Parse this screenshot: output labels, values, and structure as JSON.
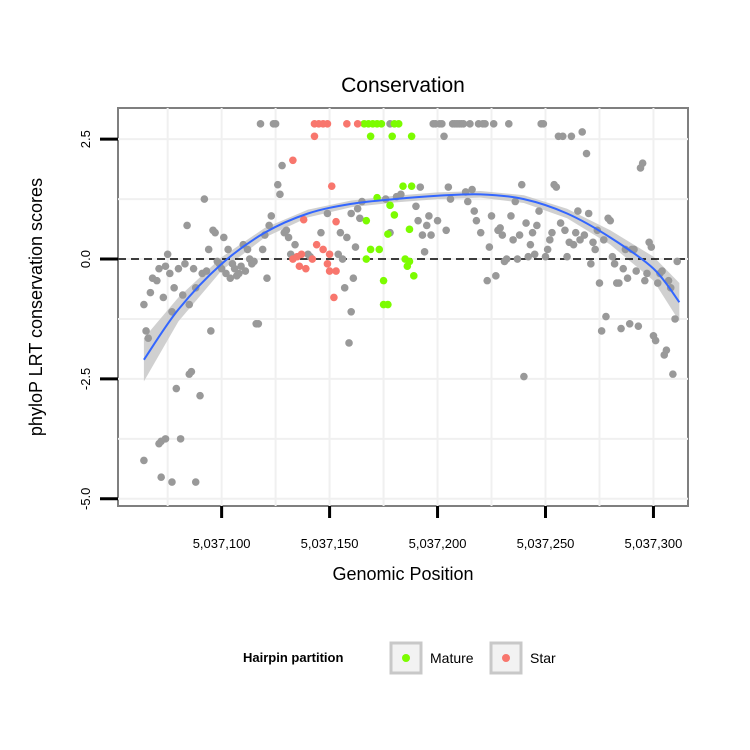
{
  "chart_data": {
    "type": "scatter",
    "title": "Conservation",
    "xlabel": "Genomic Position",
    "ylabel": "phyloP LRT conservation scores",
    "xlim": [
      5037052,
      5037316
    ],
    "ylim": [
      -5.15,
      3.15
    ],
    "x_ticks": [
      5037100,
      5037150,
      5037200,
      5037250,
      5037300
    ],
    "x_tick_labels": [
      "5,037,100",
      "5,037,150",
      "5,037,200",
      "5,037,250",
      "5,037,300"
    ],
    "y_ticks": [
      -5.0,
      -2.5,
      0.0,
      2.5
    ],
    "y_tick_labels": [
      "-5.0",
      "-2.5",
      "0.0",
      "2.5"
    ],
    "hline": 0,
    "grid": true,
    "legend_title": "Hairpin partition",
    "legend_position": "bottom",
    "colors": {
      "other": "#999999",
      "mature": "#7CFC00",
      "star": "#F8766D",
      "smooth_line": "#3366FF",
      "ribbon": "#c8c8c8",
      "panel_border": "#7f7f7f",
      "grid": "#f0f0f0"
    },
    "series": [
      {
        "name": "Mature",
        "points": [
          [
            5037166,
            2.82
          ],
          [
            5037168,
            2.82
          ],
          [
            5037170,
            2.82
          ],
          [
            5037172,
            2.82
          ],
          [
            5037174,
            2.82
          ],
          [
            5037180,
            2.82
          ],
          [
            5037182,
            2.82
          ],
          [
            5037169,
            2.56
          ],
          [
            5037179,
            2.56
          ],
          [
            5037188,
            2.56
          ],
          [
            5037184,
            1.52
          ],
          [
            5037188,
            1.52
          ],
          [
            5037172,
            1.28
          ],
          [
            5037178,
            1.12
          ],
          [
            5037180,
            0.92
          ],
          [
            5037177,
            0.52
          ],
          [
            5037187,
            0.62
          ],
          [
            5037167,
            0.8
          ],
          [
            5037169,
            0.2
          ],
          [
            5037173,
            0.2
          ],
          [
            5037167,
            0.0
          ],
          [
            5037185,
            0.0
          ],
          [
            5037187,
            -0.05
          ],
          [
            5037186,
            -0.15
          ],
          [
            5037189,
            -0.35
          ],
          [
            5037175,
            -0.45
          ],
          [
            5037175,
            -0.95
          ],
          [
            5037177,
            -0.95
          ]
        ]
      },
      {
        "name": "Star",
        "points": [
          [
            5037143,
            2.82
          ],
          [
            5037145,
            2.82
          ],
          [
            5037147,
            2.82
          ],
          [
            5037149,
            2.82
          ],
          [
            5037158,
            2.82
          ],
          [
            5037163,
            2.82
          ],
          [
            5037143,
            2.56
          ],
          [
            5037133,
            2.06
          ],
          [
            5037151,
            1.52
          ],
          [
            5037138,
            0.82
          ],
          [
            5037153,
            0.78
          ],
          [
            5037144,
            0.3
          ],
          [
            5037147,
            0.2
          ],
          [
            5037137,
            0.1
          ],
          [
            5037150,
            0.1
          ],
          [
            5037133,
            0.0
          ],
          [
            5037135,
            0.05
          ],
          [
            5037142,
            0.0
          ],
          [
            5037136,
            -0.15
          ],
          [
            5037139,
            -0.2
          ],
          [
            5037150,
            -0.25
          ],
          [
            5037153,
            -0.25
          ],
          [
            5037149,
            -0.1
          ],
          [
            5037152,
            -0.8
          ]
        ]
      },
      {
        "points": [
          [
            5037064,
            -0.95
          ],
          [
            5037065,
            -1.5
          ],
          [
            5037064,
            -4.2
          ],
          [
            5037066,
            -1.65
          ],
          [
            5037067,
            -0.7
          ],
          [
            5037068,
            -0.4
          ],
          [
            5037070,
            -0.45
          ],
          [
            5037071,
            -0.2
          ],
          [
            5037073,
            -0.8
          ],
          [
            5037074,
            -0.15
          ],
          [
            5037071,
            -3.85
          ],
          [
            5037072,
            -3.8
          ],
          [
            5037074,
            -3.75
          ],
          [
            5037072,
            -4.55
          ],
          [
            5037077,
            -4.65
          ],
          [
            5037075,
            0.1
          ],
          [
            5037076,
            -0.3
          ],
          [
            5037077,
            -1.1
          ],
          [
            5037078,
            -0.6
          ],
          [
            5037079,
            -2.7
          ],
          [
            5037080,
            -0.2
          ],
          [
            5037082,
            -0.75
          ],
          [
            5037081,
            -3.75
          ],
          [
            5037083,
            -0.1
          ],
          [
            5037084,
            0.7
          ],
          [
            5037085,
            -0.95
          ],
          [
            5037085,
            -2.4
          ],
          [
            5037086,
            -2.35
          ],
          [
            5037087,
            -0.2
          ],
          [
            5037088,
            -0.6
          ],
          [
            5037088,
            -4.65
          ],
          [
            5037090,
            -2.85
          ],
          [
            5037091,
            -0.3
          ],
          [
            5037092,
            1.25
          ],
          [
            5037093,
            -0.25
          ],
          [
            5037094,
            0.2
          ],
          [
            5037095,
            -1.5
          ],
          [
            5037096,
            0.6
          ],
          [
            5037097,
            0.55
          ],
          [
            5037098,
            -0.05
          ],
          [
            5037099,
            -0.1
          ],
          [
            5037100,
            -0.2
          ],
          [
            5037101,
            0.45
          ],
          [
            5037102,
            -0.3
          ],
          [
            5037103,
            0.2
          ],
          [
            5037104,
            -0.4
          ],
          [
            5037105,
            -0.1
          ],
          [
            5037106,
            -0.2
          ],
          [
            5037107,
            -0.35
          ],
          [
            5037108,
            -0.3
          ],
          [
            5037109,
            -0.15
          ],
          [
            5037110,
            0.3
          ],
          [
            5037111,
            -0.25
          ],
          [
            5037112,
            0.2
          ],
          [
            5037113,
            0.0
          ],
          [
            5037114,
            -0.1
          ],
          [
            5037115,
            -0.05
          ],
          [
            5037116,
            -1.35
          ],
          [
            5037117,
            -1.35
          ],
          [
            5037118,
            2.82
          ],
          [
            5037119,
            0.2
          ],
          [
            5037120,
            0.5
          ],
          [
            5037121,
            -0.4
          ],
          [
            5037122,
            0.7
          ],
          [
            5037123,
            0.9
          ],
          [
            5037124,
            2.82
          ],
          [
            5037125,
            2.82
          ],
          [
            5037126,
            1.55
          ],
          [
            5037127,
            1.35
          ],
          [
            5037128,
            1.95
          ],
          [
            5037129,
            0.55
          ],
          [
            5037130,
            0.6
          ],
          [
            5037131,
            0.45
          ],
          [
            5037132,
            0.1
          ],
          [
            5037134,
            0.3
          ],
          [
            5037140,
            0.1
          ],
          [
            5037141,
            0.05
          ],
          [
            5037146,
            0.55
          ],
          [
            5037154,
            0.1
          ],
          [
            5037155,
            0.55
          ],
          [
            5037156,
            0.0
          ],
          [
            5037157,
            -0.6
          ],
          [
            5037158,
            0.45
          ],
          [
            5037159,
            -1.75
          ],
          [
            5037160,
            -1.1
          ],
          [
            5037161,
            -0.4
          ],
          [
            5037162,
            0.25
          ],
          [
            5037163,
            1.05
          ],
          [
            5037164,
            0.85
          ],
          [
            5037165,
            1.2
          ],
          [
            5037176,
            1.25
          ],
          [
            5037178,
            0.55
          ],
          [
            5037181,
            1.3
          ],
          [
            5037183,
            1.35
          ],
          [
            5037190,
            1.1
          ],
          [
            5037191,
            0.8
          ],
          [
            5037192,
            1.5
          ],
          [
            5037193,
            0.5
          ],
          [
            5037194,
            0.15
          ],
          [
            5037195,
            0.7
          ],
          [
            5037196,
            0.9
          ],
          [
            5037197,
            0.5
          ],
          [
            5037198,
            2.82
          ],
          [
            5037199,
            2.82
          ],
          [
            5037200,
            0.8
          ],
          [
            5037201,
            2.82
          ],
          [
            5037202,
            2.82
          ],
          [
            5037203,
            2.56
          ],
          [
            5037204,
            0.6
          ],
          [
            5037205,
            1.5
          ],
          [
            5037206,
            1.25
          ],
          [
            5037207,
            2.82
          ],
          [
            5037208,
            2.82
          ],
          [
            5037209,
            2.82
          ],
          [
            5037210,
            2.82
          ],
          [
            5037211,
            2.82
          ],
          [
            5037212,
            2.82
          ],
          [
            5037213,
            1.4
          ],
          [
            5037214,
            1.2
          ],
          [
            5037215,
            2.82
          ],
          [
            5037216,
            1.45
          ],
          [
            5037217,
            1.0
          ],
          [
            5037218,
            0.8
          ],
          [
            5037219,
            2.82
          ],
          [
            5037220,
            0.55
          ],
          [
            5037221,
            2.82
          ],
          [
            5037222,
            2.82
          ],
          [
            5037223,
            -0.45
          ],
          [
            5037224,
            0.25
          ],
          [
            5037225,
            0.9
          ],
          [
            5037226,
            2.82
          ],
          [
            5037227,
            -0.35
          ],
          [
            5037228,
            0.6
          ],
          [
            5037229,
            0.65
          ],
          [
            5037230,
            0.5
          ],
          [
            5037231,
            -0.05
          ],
          [
            5037232,
            0.0
          ],
          [
            5037233,
            2.82
          ],
          [
            5037234,
            0.9
          ],
          [
            5037235,
            0.4
          ],
          [
            5037236,
            1.2
          ],
          [
            5037237,
            0.0
          ],
          [
            5037238,
            0.5
          ],
          [
            5037239,
            1.55
          ],
          [
            5037240,
            -2.45
          ],
          [
            5037241,
            0.75
          ],
          [
            5037242,
            0.05
          ],
          [
            5037243,
            0.3
          ],
          [
            5037244,
            0.55
          ],
          [
            5037245,
            0.1
          ],
          [
            5037246,
            0.7
          ],
          [
            5037247,
            1.0
          ],
          [
            5037248,
            2.82
          ],
          [
            5037249,
            2.82
          ],
          [
            5037250,
            0.05
          ],
          [
            5037251,
            0.2
          ],
          [
            5037252,
            0.4
          ],
          [
            5037253,
            0.55
          ],
          [
            5037254,
            1.55
          ],
          [
            5037255,
            1.5
          ],
          [
            5037256,
            2.56
          ],
          [
            5037257,
            0.75
          ],
          [
            5037258,
            2.56
          ],
          [
            5037259,
            0.6
          ],
          [
            5037260,
            0.05
          ],
          [
            5037261,
            0.35
          ],
          [
            5037262,
            2.56
          ],
          [
            5037263,
            0.3
          ],
          [
            5037264,
            0.55
          ],
          [
            5037265,
            1.0
          ],
          [
            5037266,
            0.4
          ],
          [
            5037267,
            2.65
          ],
          [
            5037268,
            0.5
          ],
          [
            5037269,
            2.2
          ],
          [
            5037270,
            0.95
          ],
          [
            5037271,
            -0.1
          ],
          [
            5037272,
            0.35
          ],
          [
            5037273,
            0.2
          ],
          [
            5037274,
            0.6
          ],
          [
            5037275,
            -0.5
          ],
          [
            5037276,
            -1.5
          ],
          [
            5037277,
            0.4
          ],
          [
            5037278,
            -1.2
          ],
          [
            5037279,
            0.85
          ],
          [
            5037280,
            0.8
          ],
          [
            5037281,
            0.05
          ],
          [
            5037282,
            -0.1
          ],
          [
            5037283,
            -0.5
          ],
          [
            5037284,
            -0.5
          ],
          [
            5037285,
            -1.45
          ],
          [
            5037286,
            -0.2
          ],
          [
            5037287,
            0.2
          ],
          [
            5037288,
            -0.4
          ],
          [
            5037289,
            -1.35
          ],
          [
            5037290,
            0.2
          ],
          [
            5037291,
            0.2
          ],
          [
            5037292,
            -0.25
          ],
          [
            5037293,
            -1.4
          ],
          [
            5037294,
            1.9
          ],
          [
            5037295,
            2.0
          ],
          [
            5037296,
            -0.45
          ],
          [
            5037297,
            -0.3
          ],
          [
            5037298,
            0.35
          ],
          [
            5037299,
            0.25
          ],
          [
            5037300,
            -1.6
          ],
          [
            5037301,
            -1.7
          ],
          [
            5037302,
            -0.5
          ],
          [
            5037303,
            -0.3
          ],
          [
            5037304,
            -0.25
          ],
          [
            5037305,
            -2.0
          ],
          [
            5037306,
            -1.9
          ],
          [
            5037307,
            -0.45
          ],
          [
            5037308,
            -0.6
          ],
          [
            5037309,
            -2.4
          ],
          [
            5037310,
            -1.25
          ],
          [
            5037311,
            -0.05
          ],
          [
            5037149,
            0.95
          ],
          [
            5037160,
            0.95
          ],
          [
            5037178,
            2.82
          ]
        ]
      }
    ],
    "smooth": {
      "x": [
        5037064,
        5037080,
        5037100,
        5037120,
        5037140,
        5037160,
        5037180,
        5037200,
        5037220,
        5037240,
        5037260,
        5037280,
        5037300,
        5037312
      ],
      "y": [
        -2.1,
        -1.05,
        -0.1,
        0.55,
        0.95,
        1.15,
        1.25,
        1.32,
        1.35,
        1.25,
        0.95,
        0.45,
        -0.2,
        -0.9
      ],
      "ci_half_width": [
        0.45,
        0.25,
        0.14,
        0.1,
        0.08,
        0.07,
        0.07,
        0.07,
        0.07,
        0.08,
        0.1,
        0.15,
        0.25,
        0.4
      ]
    },
    "legend": [
      {
        "label": "Mature",
        "color": "#7CFC00"
      },
      {
        "label": "Star",
        "color": "#F8766D"
      }
    ]
  }
}
